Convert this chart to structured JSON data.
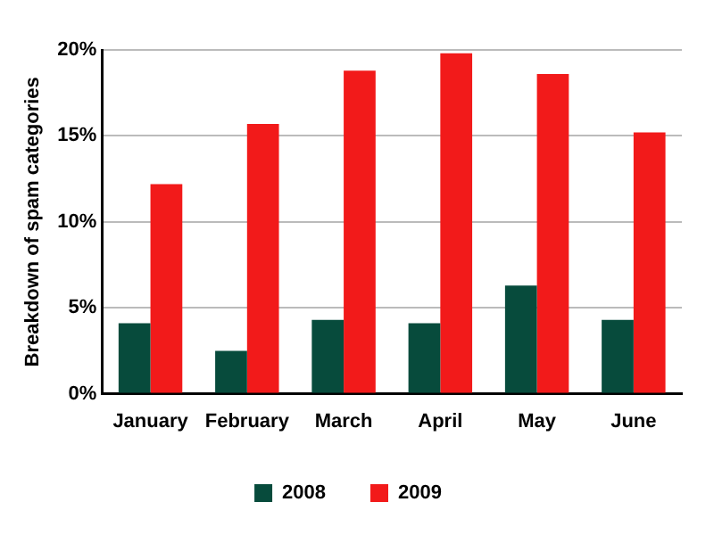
{
  "chart_data": {
    "type": "bar",
    "ylabel": "Breakdown of spam categories",
    "categories": [
      "January",
      "February",
      "March",
      "April",
      "May",
      "June"
    ],
    "series": [
      {
        "name": "2008",
        "color": "#074b3c",
        "values": [
          4.1,
          2.5,
          4.3,
          4.1,
          6.3,
          4.3
        ]
      },
      {
        "name": "2009",
        "color": "#f21a1a",
        "values": [
          12.2,
          15.7,
          18.8,
          19.8,
          18.6,
          15.2
        ]
      }
    ],
    "ylim": [
      0,
      20
    ],
    "yticks": [
      {
        "value": 0,
        "label": "0%"
      },
      {
        "value": 5,
        "label": "5%"
      },
      {
        "value": 10,
        "label": "10%"
      },
      {
        "value": 15,
        "label": "15%"
      },
      {
        "value": 20,
        "label": "20%"
      }
    ],
    "grid": "y",
    "legend": "bottom"
  }
}
